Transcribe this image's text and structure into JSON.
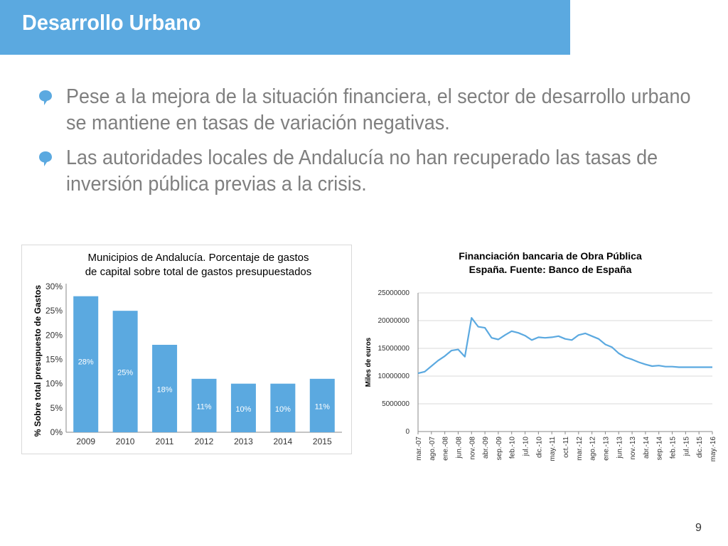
{
  "header": {
    "title": "Desarrollo Urbano",
    "bar_color": "#5ba9e0"
  },
  "bullets": [
    {
      "text": "Pese a la mejora de la situación financiera, el sector de desarrollo urbano se mantiene en tasas de variación negativas.",
      "icon": "speech-bubble-icon"
    },
    {
      "text": "Las autoridades locales de Andalucía no han recuperado las tasas de inversión pública previas a la crisis.",
      "icon": "speech-bubble-icon"
    }
  ],
  "page_number": "9",
  "chart_data": [
    {
      "type": "bar",
      "title": "Municipios de Andalucía. Porcentaje de gastos de capital sobre total de gastos presupuestados",
      "title_lines": [
        "Municipios de Andalucía. Porcentaje de gastos",
        "de capital sobre total de gastos presupuestados"
      ],
      "ylabel": "% Sobre total presupuesto de Gastos",
      "categories": [
        "2009",
        "2010",
        "2011",
        "2012",
        "2013",
        "2014",
        "2015"
      ],
      "values": [
        28,
        25,
        18,
        11,
        10,
        10,
        11
      ],
      "data_labels": [
        "28%",
        "25%",
        "18%",
        "11%",
        "10%",
        "10%",
        "11%"
      ],
      "yticks": [
        "0%",
        "5%",
        "10%",
        "15%",
        "20%",
        "25%",
        "30%"
      ],
      "ylim": [
        0,
        30
      ],
      "grid": false,
      "bar_color": "#5ba9e0"
    },
    {
      "type": "line",
      "title": "Financiación bancaria de Obra Pública España. Fuente: Banco de España",
      "title_lines": [
        "Financiación bancaria de Obra Pública",
        "España. Fuente: Banco de España"
      ],
      "ylabel": "Miles de euros",
      "ylim": [
        0,
        25000000
      ],
      "yticks": [
        "0",
        "5000000",
        "10000000",
        "15000000",
        "20000000",
        "25000000"
      ],
      "xtick_labels": [
        "mar.-07",
        "ago.-07",
        "ene.-08",
        "jun.-08",
        "nov.-08",
        "abr.-09",
        "sep.-09",
        "feb.-10",
        "jul.-10",
        "dic.-10",
        "may.-11",
        "oct.-11",
        "mar.-12",
        "ago.-12",
        "ene.-13",
        "jun.-13",
        "nov.-13",
        "abr.-14",
        "sep.-14",
        "feb.-15",
        "jul.-15",
        "dic.-15",
        "may.-16"
      ],
      "grid": true,
      "line_color": "#5ba9e0",
      "series": [
        {
          "x": [
            0,
            0.5,
            1,
            1.5,
            2,
            2.5,
            3,
            3.5,
            4,
            4.5,
            5,
            5.5,
            6,
            6.5,
            7,
            7.5,
            8,
            8.5,
            9,
            9.5,
            10,
            10.5,
            11,
            11.5,
            12,
            12.5,
            13,
            13.5,
            14,
            14.5,
            15,
            15.5,
            16,
            16.5,
            17,
            17.5,
            18,
            18.5,
            19,
            19.5,
            20,
            20.5,
            21,
            21.5,
            22
          ],
          "values": [
            10500000,
            10800000,
            11800000,
            12800000,
            13600000,
            14600000,
            14800000,
            13500000,
            20500000,
            18900000,
            18700000,
            16900000,
            16600000,
            17400000,
            18100000,
            17800000,
            17300000,
            16500000,
            17000000,
            16900000,
            17000000,
            17200000,
            16700000,
            16500000,
            17400000,
            17700000,
            17200000,
            16700000,
            15700000,
            15200000,
            14100000,
            13400000,
            13000000,
            12500000,
            12100000,
            11800000,
            11900000,
            11700000,
            11700000,
            11600000,
            11600000,
            11600000,
            11600000,
            11600000,
            11600000
          ]
        }
      ]
    }
  ]
}
